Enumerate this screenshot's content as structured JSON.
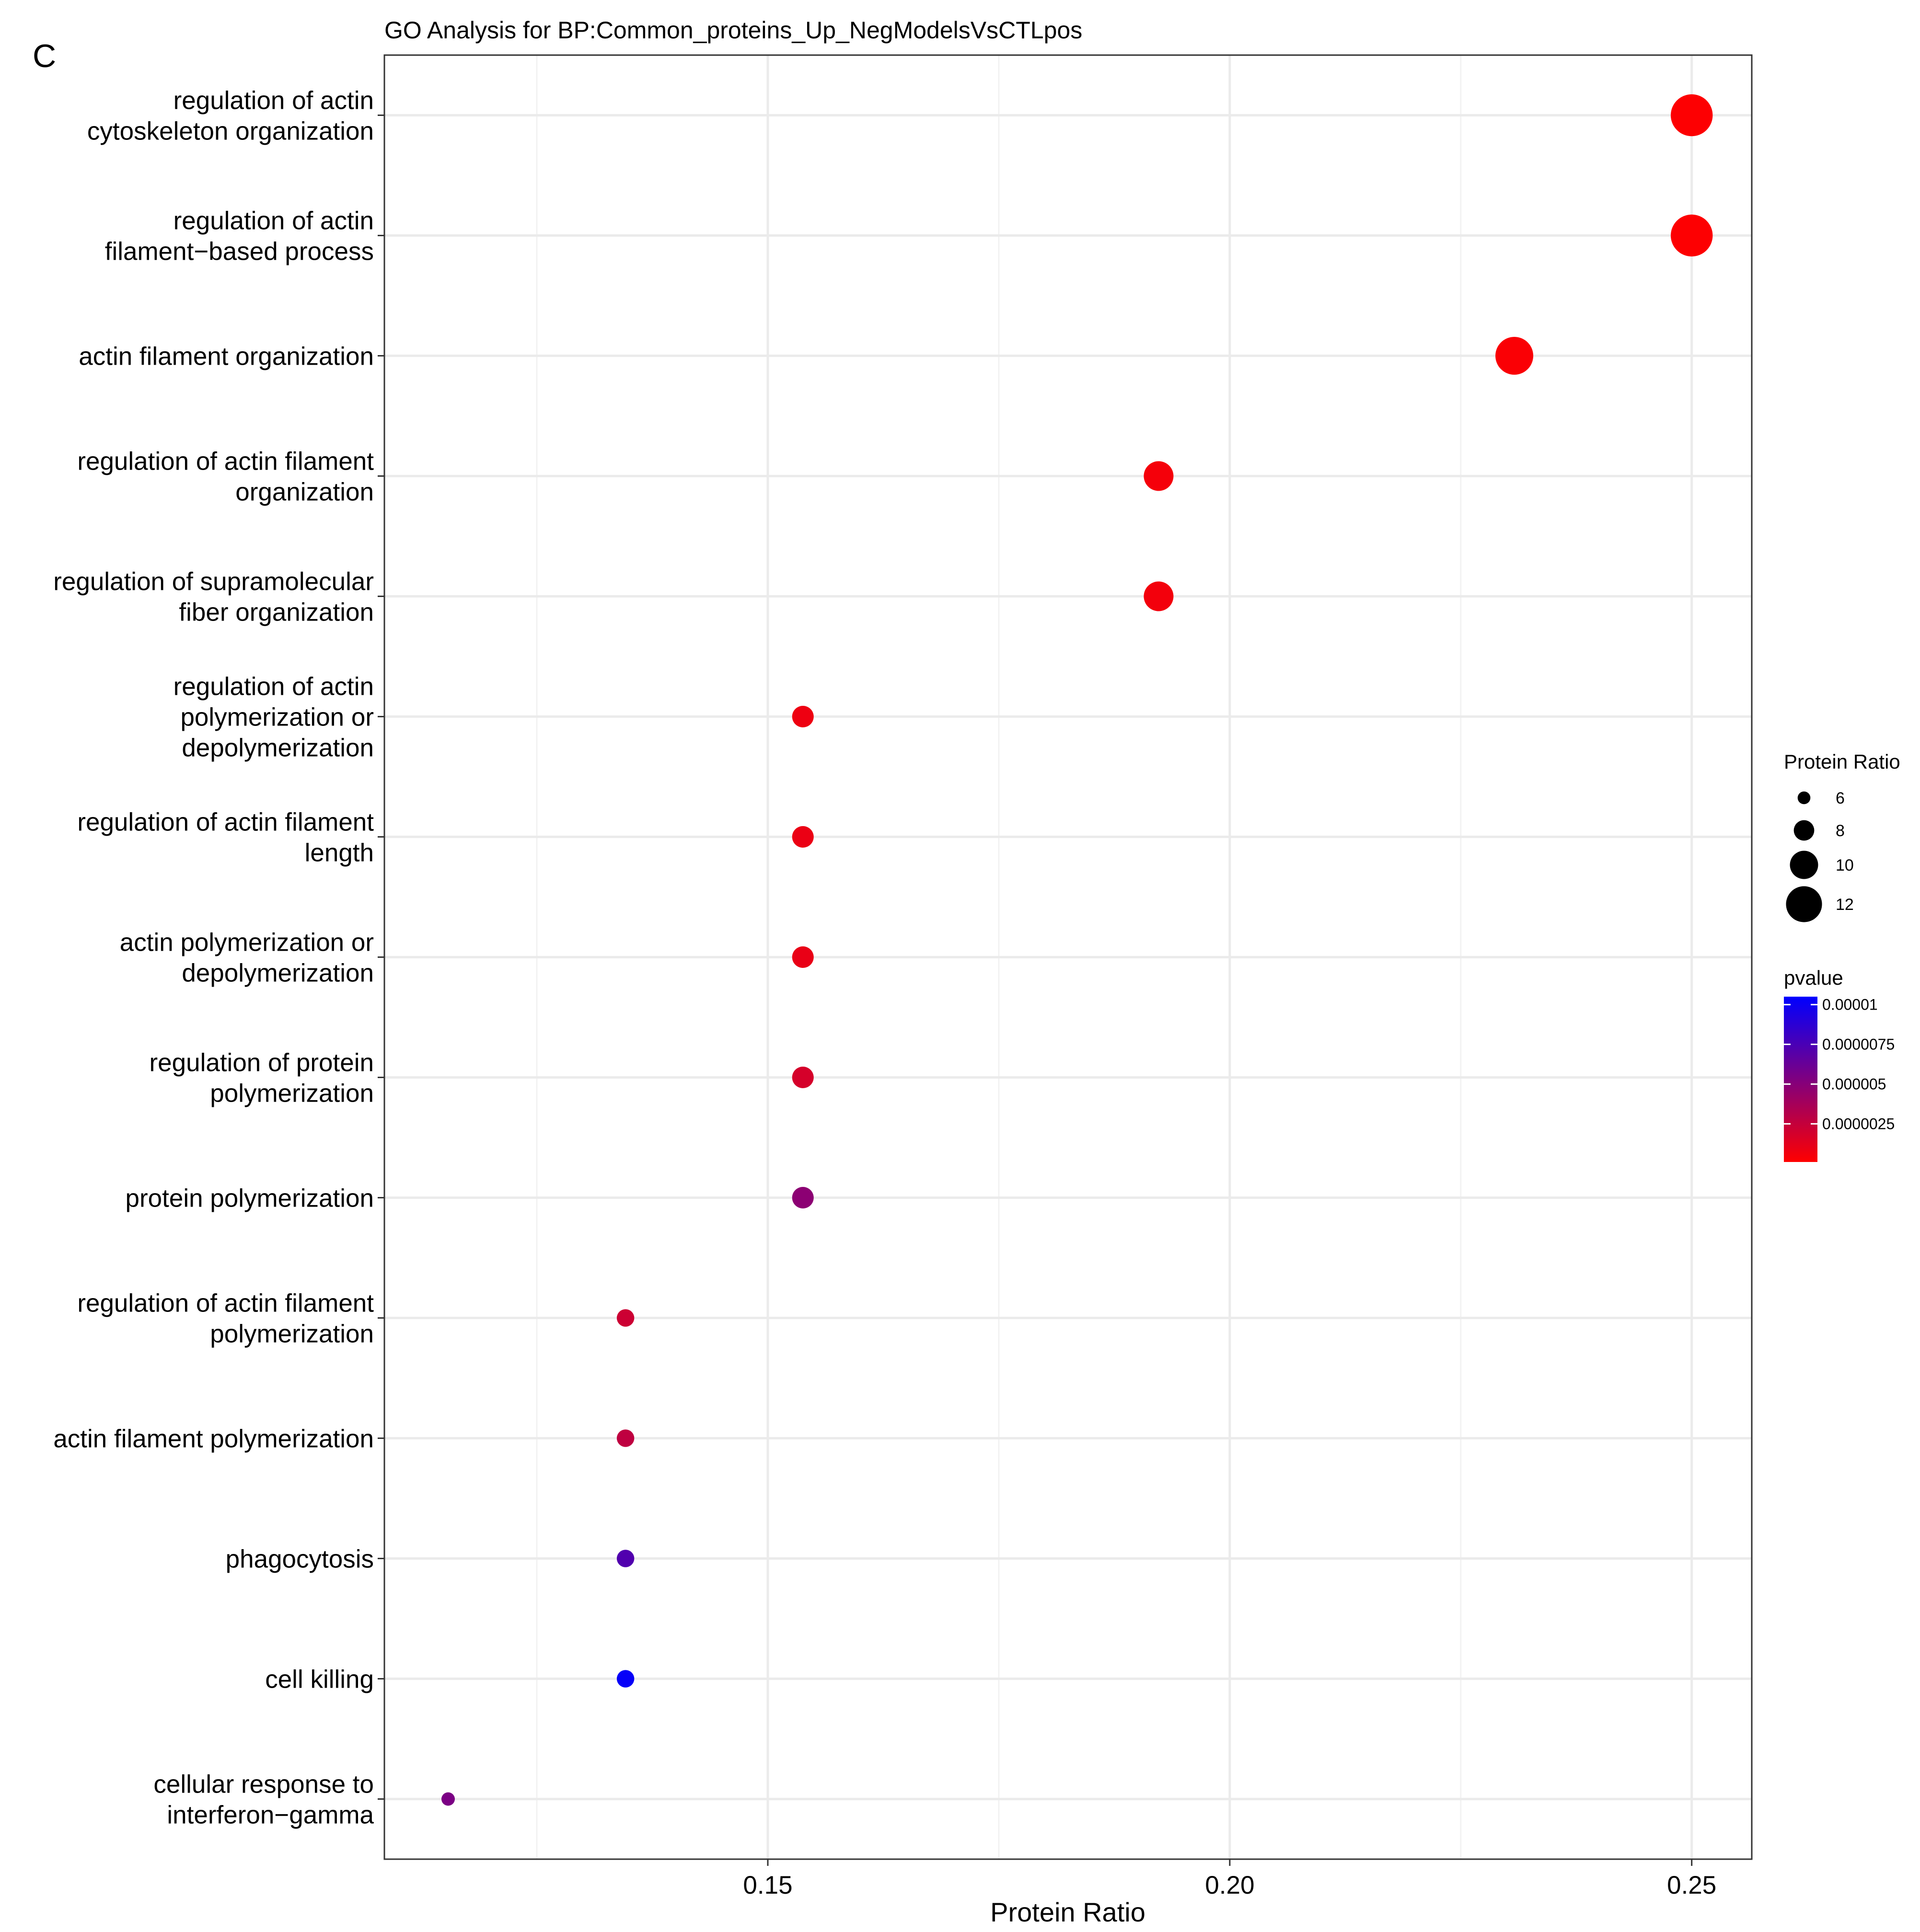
{
  "panel_label": "C",
  "chart_data": {
    "type": "scatter",
    "title": "GO Analysis for BP:Common_proteins_Up_NegModelsVsCTLpos",
    "xlabel": "Protein Ratio",
    "ylabel": "",
    "xlim": [
      0.1085,
      0.2565
    ],
    "x_ticks": [
      0.15,
      0.2,
      0.25
    ],
    "x_tick_labels": [
      "0.15",
      "0.20",
      "0.25"
    ],
    "grid": true,
    "colors": {
      "low_pvalue": "#FF0000",
      "high_pvalue": "#0000FF"
    },
    "size_legend": {
      "title": "Protein Ratio",
      "entries": [
        6,
        8,
        10,
        12
      ],
      "labels": [
        "6",
        "8",
        "10",
        "12"
      ]
    },
    "color_legend": {
      "title": "pvalue",
      "range": [
        1e-07,
        1.05e-05
      ],
      "ticks": [
        1e-05,
        7.5e-06,
        5e-06,
        2.5e-06
      ],
      "labels": [
        "0.00001",
        "0.0000075",
        "0.000005",
        "0.0000025"
      ]
    },
    "points": [
      {
        "term": [
          "regulation of actin",
          "cytoskeleton organization"
        ],
        "x": 0.25,
        "count": 13,
        "pvalue": 2e-07
      },
      {
        "term": [
          "regulation of actin",
          "filament−based process"
        ],
        "x": 0.25,
        "count": 13,
        "pvalue": 2e-07
      },
      {
        "term": [
          "actin filament organization"
        ],
        "x": 0.2308,
        "count": 12,
        "pvalue": 3e-07
      },
      {
        "term": [
          "regulation of actin filament",
          "organization"
        ],
        "x": 0.1923,
        "count": 10,
        "pvalue": 5e-07
      },
      {
        "term": [
          "regulation of supramolecular",
          "fiber organization"
        ],
        "x": 0.1923,
        "count": 10,
        "pvalue": 6e-07
      },
      {
        "term": [
          "regulation of actin",
          "polymerization or",
          "depolymerization"
        ],
        "x": 0.1538,
        "count": 8,
        "pvalue": 8e-07
      },
      {
        "term": [
          "regulation of actin filament",
          "length"
        ],
        "x": 0.1538,
        "count": 8,
        "pvalue": 9e-07
      },
      {
        "term": [
          "actin polymerization or",
          "depolymerization"
        ],
        "x": 0.1538,
        "count": 8,
        "pvalue": 1e-06
      },
      {
        "term": [
          "regulation of protein",
          "polymerization"
        ],
        "x": 0.1538,
        "count": 8,
        "pvalue": 1.8e-06
      },
      {
        "term": [
          "protein polymerization"
        ],
        "x": 0.1538,
        "count": 8,
        "pvalue": 4.8e-06
      },
      {
        "term": [
          "regulation of actin filament",
          "polymerization"
        ],
        "x": 0.1346,
        "count": 7,
        "pvalue": 2.2e-06
      },
      {
        "term": [
          "actin filament polymerization"
        ],
        "x": 0.1346,
        "count": 7,
        "pvalue": 2.7e-06
      },
      {
        "term": [
          "phagocytosis"
        ],
        "x": 0.1346,
        "count": 7,
        "pvalue": 7.2e-06
      },
      {
        "term": [
          "cell killing"
        ],
        "x": 0.1346,
        "count": 7,
        "pvalue": 1.02e-05
      },
      {
        "term": [
          "cellular response to",
          "interferon−gamma"
        ],
        "x": 0.1154,
        "count": 6,
        "pvalue": 5.5e-06
      }
    ]
  }
}
